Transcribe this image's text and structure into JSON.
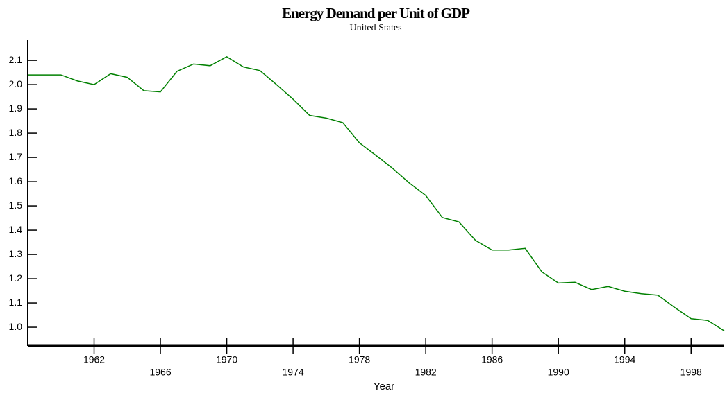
{
  "chart_data": {
    "type": "line",
    "title": "Energy Demand per Unit of GDP",
    "subtitle": "United States",
    "xlabel": "Year",
    "x": [
      1958,
      1959,
      1960,
      1961,
      1962,
      1963,
      1964,
      1965,
      1966,
      1967,
      1968,
      1969,
      1970,
      1971,
      1972,
      1973,
      1974,
      1975,
      1976,
      1977,
      1978,
      1979,
      1980,
      1981,
      1982,
      1983,
      1984,
      1985,
      1986,
      1987,
      1988,
      1989,
      1990,
      1991,
      1992,
      1993,
      1994,
      1995,
      1996,
      1997,
      1998,
      1999,
      2000
    ],
    "series": [
      {
        "name": "Energy Demand per Unit of GDP",
        "color": "#008000",
        "values": [
          2.04,
          2.04,
          2.04,
          2.015,
          2.0,
          2.045,
          2.03,
          1.975,
          1.97,
          2.055,
          2.085,
          2.078,
          2.115,
          2.073,
          2.058,
          2.0,
          1.94,
          1.873,
          1.862,
          1.843,
          1.76,
          1.708,
          1.655,
          1.595,
          1.543,
          1.452,
          1.434,
          1.358,
          1.318,
          1.318,
          1.325,
          1.228,
          1.182,
          1.185,
          1.155,
          1.168,
          1.148,
          1.138,
          1.132,
          1.082,
          1.035,
          1.028,
          0.985
        ]
      }
    ],
    "xlim": [
      1958,
      2000
    ],
    "xticks": [
      1962,
      1966,
      1970,
      1974,
      1978,
      1982,
      1986,
      1990,
      1994,
      1998
    ],
    "ylim": [
      0.923,
      2.186
    ],
    "yticks": [
      {
        "value": 1.0,
        "label": "1.0"
      },
      1.1,
      1.2,
      1.3,
      1.4,
      1.5,
      1.6,
      1.7,
      1.8,
      1.9,
      {
        "value": 2.0,
        "label": "2.0"
      },
      2.1
    ]
  }
}
